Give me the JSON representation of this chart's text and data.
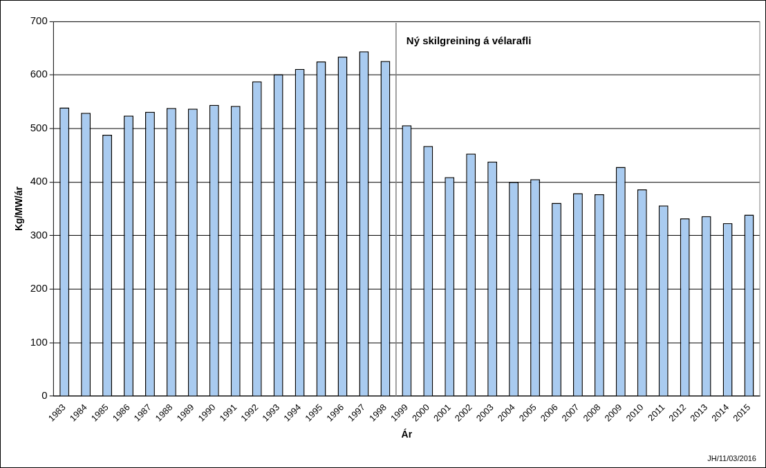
{
  "chart_data": {
    "type": "bar",
    "xlabel": "Ár",
    "ylabel": "Kg/MW/ár",
    "categories": [
      "1983",
      "1984",
      "1985",
      "1986",
      "1987",
      "1988",
      "1989",
      "1990",
      "1991",
      "1992",
      "1993",
      "1994",
      "1995",
      "1996",
      "1997",
      "1998",
      "1999",
      "2000",
      "2001",
      "2002",
      "2003",
      "2004",
      "2005",
      "2006",
      "2007",
      "2008",
      "2009",
      "2010",
      "2011",
      "2012",
      "2013",
      "2014",
      "2015"
    ],
    "values": [
      539,
      529,
      488,
      524,
      531,
      538,
      537,
      544,
      542,
      588,
      601,
      611,
      625,
      634,
      644,
      626,
      506,
      467,
      409,
      453,
      438,
      400,
      405,
      361,
      379,
      377,
      428,
      386,
      356,
      332,
      336,
      323,
      339
    ],
    "color": "#a9cbf0",
    "ylim": [
      0,
      700
    ],
    "yticks": [
      0,
      100,
      200,
      300,
      400,
      500,
      600,
      700
    ],
    "grid": "y",
    "ref_lines": [
      {
        "axis": "x",
        "value": "1999",
        "label": "Ný skilgreining á vélarafli"
      }
    ],
    "annotations": [
      "JH/11/03/2016"
    ]
  }
}
